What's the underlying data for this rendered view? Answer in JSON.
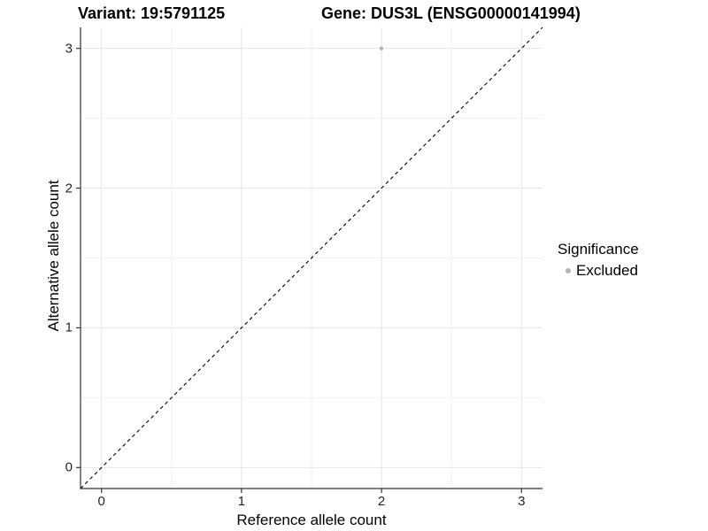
{
  "titles": {
    "variant": "Variant: 19:5791125",
    "gene": "Gene: DUS3L (ENSG00000141994)"
  },
  "axes": {
    "x_label": "Reference allele count",
    "y_label": "Alternative allele count"
  },
  "legend": {
    "title": "Significance",
    "items": [
      {
        "label": "Excluded",
        "marker": "circle-icon",
        "color": "#b3b3b3"
      }
    ]
  },
  "chart_data": {
    "type": "scatter",
    "title": "Variant: 19:5791125   Gene: DUS3L (ENSG00000141994)",
    "xlabel": "Reference allele count",
    "ylabel": "Alternative allele count",
    "xlim": [
      -0.15,
      3.15
    ],
    "ylim": [
      -0.15,
      3.15
    ],
    "x_ticks": [
      0,
      1,
      2,
      3
    ],
    "y_ticks": [
      0,
      1,
      2,
      3
    ],
    "x_minor_ticks": [
      0.5,
      1.5,
      2.5
    ],
    "y_minor_ticks": [
      0.5,
      1.5,
      2.5
    ],
    "grid": true,
    "legend_position": "right",
    "series": [
      {
        "name": "Excluded",
        "color": "#b3b3b3",
        "marker_radius": 2.2,
        "points": [
          {
            "x": 2,
            "y": 3
          }
        ]
      }
    ],
    "reference_line": {
      "type": "identity",
      "style": "dashed",
      "color": "#000000"
    },
    "colors": {
      "grid_major": "#e6e6e6",
      "grid_minor": "#f2f2f2",
      "axis_line": "#333333",
      "tick_mark": "#333333",
      "tick_text": "#262626",
      "background": "#ffffff"
    }
  }
}
